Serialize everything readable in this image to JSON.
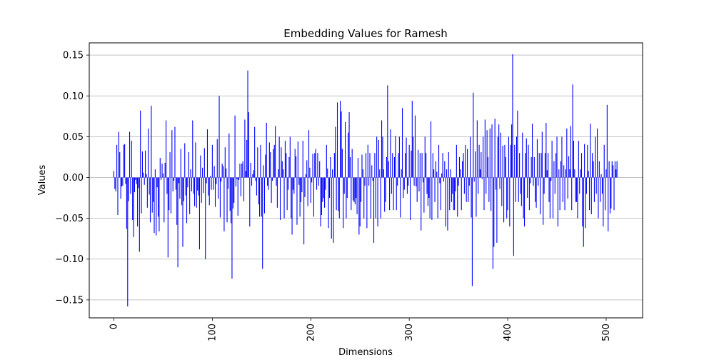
{
  "chart_data": {
    "type": "bar",
    "title": "Embedding Values for Ramesh",
    "xlabel": "Dimensions",
    "ylabel": "Values",
    "xlim": [
      -25,
      537
    ],
    "ylim": [
      -0.172,
      0.165
    ],
    "x_ticks": [
      0,
      100,
      200,
      300,
      400,
      500
    ],
    "x_tick_labels": [
      "0",
      "100",
      "200",
      "300",
      "400",
      "500"
    ],
    "y_ticks": [
      0.15,
      0.1,
      0.05,
      0.0,
      -0.05,
      -0.1,
      -0.15
    ],
    "y_tick_labels": [
      "0.15",
      "0.10",
      "0.05",
      "0.00",
      "−0.05",
      "−0.10",
      "−0.15"
    ],
    "grid": "y-major",
    "color": "#0000ff",
    "x": [
      0,
      1,
      2,
      3,
      4,
      5,
      6,
      7,
      8,
      9,
      10,
      11,
      12,
      13,
      14,
      15,
      16,
      17,
      18,
      19,
      20,
      21,
      22,
      23,
      24,
      25,
      26,
      27,
      28,
      29,
      30,
      31,
      32,
      33,
      34,
      35,
      36,
      37,
      38,
      39,
      40,
      41,
      42,
      43,
      44,
      45,
      46,
      47,
      48,
      49,
      50,
      51,
      52,
      53,
      54,
      55,
      56,
      57,
      58,
      59,
      60,
      61,
      62,
      63,
      64,
      65,
      66,
      67,
      68,
      69,
      70,
      71,
      72,
      73,
      74,
      75,
      76,
      77,
      78,
      79,
      80,
      81,
      82,
      83,
      84,
      85,
      86,
      87,
      88,
      89,
      90,
      91,
      92,
      93,
      94,
      95,
      96,
      97,
      98,
      99,
      100,
      101,
      102,
      103,
      104,
      105,
      106,
      107,
      108,
      109,
      110,
      111,
      112,
      113,
      114,
      115,
      116,
      117,
      118,
      119,
      120,
      121,
      122,
      123,
      124,
      125,
      126,
      127,
      128,
      129,
      130,
      131,
      132,
      133,
      134,
      135,
      136,
      137,
      138,
      139,
      140,
      141,
      142,
      143,
      144,
      145,
      146,
      147,
      148,
      149,
      150,
      151,
      152,
      153,
      154,
      155,
      156,
      157,
      158,
      159,
      160,
      161,
      162,
      163,
      164,
      165,
      166,
      167,
      168,
      169,
      170,
      171,
      172,
      173,
      174,
      175,
      176,
      177,
      178,
      179,
      180,
      181,
      182,
      183,
      184,
      185,
      186,
      187,
      188,
      189,
      190,
      191,
      192,
      193,
      194,
      195,
      196,
      197,
      198,
      199,
      200,
      201,
      202,
      203,
      204,
      205,
      206,
      207,
      208,
      209,
      210,
      211,
      212,
      213,
      214,
      215,
      216,
      217,
      218,
      219,
      220,
      221,
      222,
      223,
      224,
      225,
      226,
      227,
      228,
      229,
      230,
      231,
      232,
      233,
      234,
      235,
      236,
      237,
      238,
      239,
      240,
      241,
      242,
      243,
      244,
      245,
      246,
      247,
      248,
      249,
      250,
      251,
      252,
      253,
      254,
      255,
      256,
      257,
      258,
      259,
      260,
      261,
      262,
      263,
      264,
      265,
      266,
      267,
      268,
      269,
      270,
      271,
      272,
      273,
      274,
      275,
      276,
      277,
      278,
      279,
      280,
      281,
      282,
      283,
      284,
      285,
      286,
      287,
      288,
      289,
      290,
      291,
      292,
      293,
      294,
      295,
      296,
      297,
      298,
      299,
      300,
      301,
      302,
      303,
      304,
      305,
      306,
      307,
      308,
      309,
      310,
      311,
      312,
      313,
      314,
      315,
      316,
      317,
      318,
      319,
      320,
      321,
      322,
      323,
      324,
      325,
      326,
      327,
      328,
      329,
      330,
      331,
      332,
      333,
      334,
      335,
      336,
      337,
      338,
      339,
      340,
      341,
      342,
      343,
      344,
      345,
      346,
      347,
      348,
      349,
      350,
      351,
      352,
      353,
      354,
      355,
      356,
      357,
      358,
      359,
      360,
      361,
      362,
      363,
      364,
      365,
      366,
      367,
      368,
      369,
      370,
      371,
      372,
      373,
      374,
      375,
      376,
      377,
      378,
      379,
      380,
      381,
      382,
      383,
      384,
      385,
      386,
      387,
      388,
      389,
      390,
      391,
      392,
      393,
      394,
      395,
      396,
      397,
      398,
      399,
      400,
      401,
      402,
      403,
      404,
      405,
      406,
      407,
      408,
      409,
      410,
      411,
      412,
      413,
      414,
      415,
      416,
      417,
      418,
      419,
      420,
      421,
      422,
      423,
      424,
      425,
      426,
      427,
      428,
      429,
      430,
      431,
      432,
      433,
      434,
      435,
      436,
      437,
      438,
      439,
      440,
      441,
      442,
      443,
      444,
      445,
      446,
      447,
      448,
      449,
      450,
      451,
      452,
      453,
      454,
      455,
      456,
      457,
      458,
      459,
      460,
      461,
      462,
      463,
      464,
      465,
      466,
      467,
      468,
      469,
      470,
      471,
      472,
      473,
      474,
      475,
      476,
      477,
      478,
      479,
      480,
      481,
      482,
      483,
      484,
      485,
      486,
      487,
      488,
      489,
      490,
      491,
      492,
      493,
      494,
      495,
      496,
      497,
      498,
      499,
      500,
      501,
      502,
      503,
      504,
      505,
      506,
      507,
      508,
      509,
      510,
      511
    ],
    "values": [
      0.008,
      -0.014,
      -0.017,
      0.04,
      -0.046,
      0.056,
      0.031,
      -0.026,
      -0.011,
      -0.01,
      0.04,
      0.041,
      -0.008,
      -0.063,
      -0.158,
      -0.029,
      0.056,
      -0.02,
      0.045,
      -0.052,
      -0.073,
      -0.018,
      -0.003,
      -0.008,
      -0.06,
      -0.013,
      -0.091,
      0.082,
      -0.044,
      0.032,
      0.006,
      -0.009,
      0.033,
      0.004,
      -0.037,
      0.06,
      -0.021,
      -0.055,
      0.088,
      -0.043,
      -0.03,
      -0.068,
      0.01,
      -0.071,
      -0.012,
      -0.048,
      -0.066,
      0.024,
      -0.003,
      0.017,
      0.005,
      -0.055,
      0.018,
      0.07,
      -0.02,
      -0.098,
      -0.04,
      0.031,
      -0.044,
      0.058,
      -0.017,
      -0.004,
      0.062,
      -0.015,
      -0.058,
      -0.11,
      -0.007,
      -0.026,
      0.035,
      -0.034,
      -0.085,
      -0.029,
      0.042,
      -0.022,
      -0.056,
      -0.012,
      0.031,
      -0.045,
      0.01,
      -0.017,
      0.07,
      -0.02,
      -0.035,
      0.043,
      -0.037,
      -0.016,
      -0.022,
      -0.088,
      0.027,
      -0.031,
      0.012,
      -0.019,
      0.036,
      -0.1,
      -0.007,
      0.059,
      -0.022,
      -0.034,
      0.002,
      -0.015,
      0.04,
      -0.015,
      0.014,
      -0.036,
      -0.008,
      0.047,
      -0.026,
      0.1,
      -0.049,
      -0.005,
      0.017,
      0.014,
      -0.066,
      0.037,
      0.011,
      -0.055,
      -0.014,
      0.054,
      -0.041,
      -0.056,
      -0.124,
      -0.038,
      -0.031,
      0.076,
      -0.011,
      -0.002,
      -0.047,
      -0.003,
      0.017,
      -0.023,
      0.017,
      0.02,
      -0.029,
      0.071,
      0.008,
      0.046,
      0.131,
      0.08,
      -0.06,
      0.018,
      -0.01,
      0.004,
      0.009,
      0.062,
      -0.004,
      -0.022,
      0.037,
      -0.033,
      -0.048,
      0.04,
      -0.048,
      -0.112,
      0.015,
      -0.044,
      0.028,
      0.067,
      -0.01,
      -0.015,
      0.043,
      0.031,
      -0.031,
      -0.004,
      0.035,
      0.04,
      0.063,
      -0.01,
      -0.037,
      0.01,
      0.05,
      -0.052,
      0.037,
      0.02,
      0.01,
      -0.05,
      0.045,
      0.03,
      -0.04,
      -0.015,
      0.025,
      0.05,
      -0.05,
      -0.07,
      -0.015,
      -0.02,
      0.035,
      0.026,
      -0.058,
      0.044,
      -0.009,
      -0.048,
      -0.03,
      -0.018,
      0.045,
      -0.082,
      -0.024,
      0.004,
      0.021,
      -0.035,
      0.058,
      0.012,
      -0.031,
      -0.006,
      0.029,
      -0.048,
      0.03,
      0.035,
      -0.015,
      0.03,
      -0.01,
      0.02,
      -0.06,
      -0.046,
      -0.03,
      -0.025,
      -0.037,
      -0.015,
      0.04,
      0.011,
      -0.062,
      -0.025,
      0.025,
      -0.075,
      0.01,
      -0.08,
      0.03,
      0.062,
      -0.04,
      0.092,
      -0.041,
      -0.05,
      0.094,
      0.081,
      0.035,
      -0.062,
      -0.02,
      0.068,
      -0.05,
      -0.025,
      0.055,
      0.08,
      0.025,
      -0.04,
      0.035,
      -0.028,
      -0.03,
      -0.033,
      -0.025,
      -0.045,
      0.024,
      -0.07,
      -0.06,
      -0.03,
      0.028,
      0.01,
      -0.05,
      -0.01,
      0.03,
      -0.062,
      0.04,
      -0.01,
      0.03,
      -0.05,
      0.015,
      -0.004,
      -0.08,
      0.03,
      -0.05,
      0.05,
      -0.06,
      0.046,
      0.01,
      -0.05,
      0.07,
      0.05,
      0.01,
      -0.042,
      -0.03,
      0.025,
      0.113,
      0.02,
      -0.04,
      0.059,
      -0.02,
      0.03,
      -0.04,
      0.025,
      0.051,
      -0.04,
      -0.01,
      0.03,
      0.05,
      -0.049,
      0.01,
      0.085,
      -0.025,
      -0.015,
      0.03,
      0.049,
      -0.02,
      -0.01,
      0.04,
      -0.052,
      0.033,
      0.094,
      0.05,
      -0.01,
      0.076,
      -0.011,
      -0.03,
      0.034,
      -0.017,
      0.03,
      -0.065,
      0.03,
      -0.006,
      -0.043,
      0.05,
      0.03,
      -0.02,
      -0.035,
      -0.025,
      -0.05,
      0.069,
      -0.052,
      0.03,
      0.01,
      -0.03,
      0.02,
      0.007,
      -0.05,
      0.04,
      -0.007,
      -0.04,
      0.005,
      0.03,
      -0.005,
      0.02,
      -0.06,
      0.01,
      -0.065,
      0.031,
      -0.04,
      0.01,
      -0.03,
      -0.02,
      -0.04,
      -0.04,
      -0.017,
      0.04,
      -0.048,
      -0.01,
      0.025,
      0.01,
      -0.04,
      0.02,
      0.03,
      -0.02,
      0.04,
      -0.03,
      0.035,
      -0.03,
      -0.01,
      0.05,
      -0.049,
      -0.133,
      0.104,
      -0.005,
      0.032,
      -0.048,
      0.07,
      -0.02,
      0.04,
      0.01,
      0.031,
      -0.002,
      0.05,
      -0.04,
      0.071,
      -0.02,
      0.058,
      0.025,
      -0.03,
      0.06,
      -0.041,
      0.065,
      -0.112,
      -0.085,
      0.072,
      -0.015,
      -0.08,
      0.05,
      0.065,
      -0.014,
      0.055,
      -0.035,
      0.039,
      -0.055,
      0.04,
      0.025,
      -0.05,
      -0.04,
      0.05,
      -0.06,
      0.04,
      0.065,
      0.151,
      -0.096,
      0.04,
      -0.03,
      0.05,
      0.082,
      -0.03,
      0.03,
      -0.02,
      -0.035,
      0.055,
      -0.05,
      -0.06,
      0.03,
      0.048,
      -0.025,
      0.04,
      -0.04,
      -0.007,
      0.025,
      0.066,
      -0.01,
      0.025,
      -0.03,
      -0.037,
      0.047,
      -0.01,
      0.03,
      -0.045,
      0.03,
      0.056,
      -0.058,
      -0.02,
      0.03,
      0.067,
      0.009,
      0.03,
      -0.03,
      -0.05,
      -0.004,
      0.045,
      -0.05,
      0.02,
      -0.02,
      0.03,
      0.05,
      -0.06,
      0.01,
      -0.04,
      0.02,
      0.05,
      -0.03,
      0.015,
      -0.04,
      0.01,
      0.06,
      -0.026,
      0.026,
      0.01,
      0.063,
      -0.04,
      0.114,
      0.045,
      0.01,
      -0.03,
      -0.03,
      -0.05,
      0.045,
      -0.02,
      0.01,
      0.03,
      -0.06,
      -0.085,
      0.041,
      -0.062,
      -0.02,
      0.04,
      0.008,
      -0.04,
      0.066,
      -0.045,
      0.03,
      0.02,
      -0.03,
      0.05,
      -0.02,
      0.06,
      -0.05,
      0.02,
      -0.03,
      0.004,
      -0.02,
      -0.06,
      0.04,
      -0.04,
      0.01,
      0.089,
      -0.066,
      0.02,
      -0.044,
      -0.038,
      0.02,
      0.015,
      -0.04,
      0.02,
      0.01,
      0.02
    ]
  }
}
